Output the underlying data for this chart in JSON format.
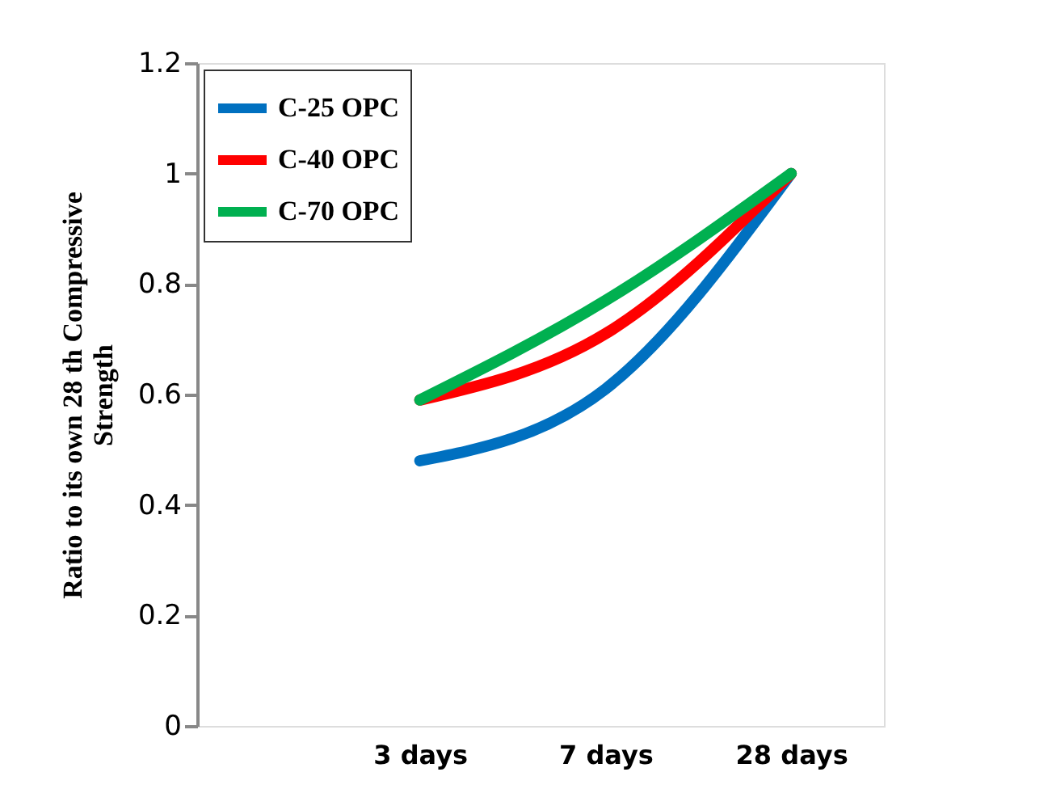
{
  "chart_data": {
    "type": "line",
    "ylabel": "Ratio to its own 28 th Compressive Strength",
    "categories": [
      "3 days",
      "7 days",
      "28 days"
    ],
    "series": [
      {
        "name": "C-25 OPC",
        "color": "#0070c0",
        "values": [
          0.48,
          0.61,
          1.0
        ]
      },
      {
        "name": "C-40 OPC",
        "color": "#ff0000",
        "values": [
          0.59,
          0.71,
          1.0
        ]
      },
      {
        "name": "C-70 OPC",
        "color": "#00b050",
        "values": [
          0.59,
          0.77,
          1.0
        ]
      }
    ],
    "ylim": [
      0,
      1.2
    ],
    "yticks": [
      0,
      0.2,
      0.4,
      0.6,
      0.8,
      1,
      1.2
    ],
    "grid": false,
    "legend": "top left",
    "marker": "none",
    "line_style": "solid"
  }
}
